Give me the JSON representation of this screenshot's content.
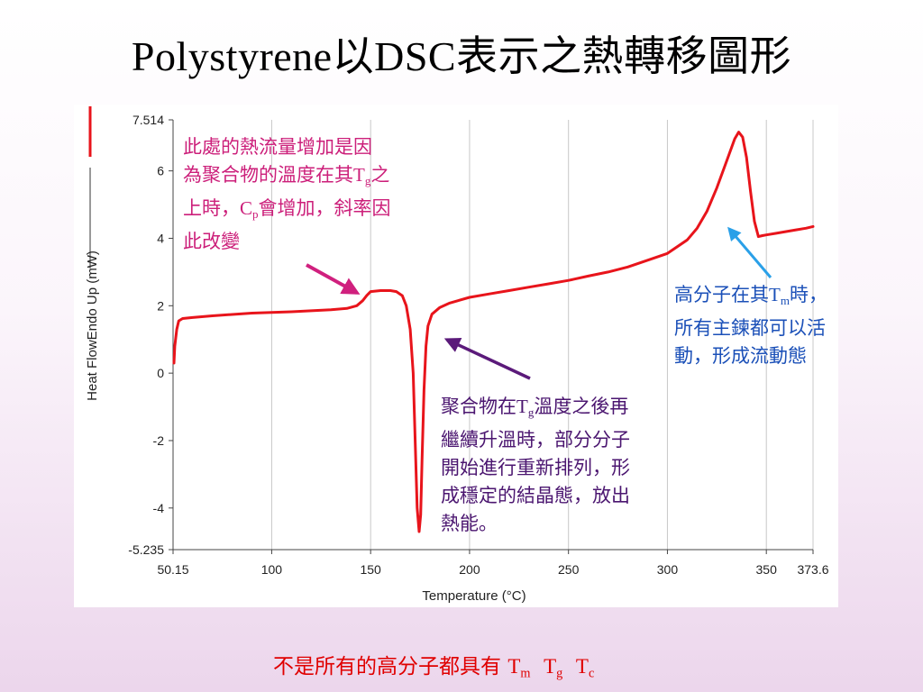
{
  "slide": {
    "title_latin": "Polystyrene",
    "title_rest1": "以",
    "title_latin2": "DSC",
    "title_rest2": "表示之熱轉移圖形"
  },
  "annotations": {
    "pink": {
      "line1": "此處的熱流量增加是因",
      "line2a": "為聚合物的溫度在其",
      "line2_T": "T",
      "line2_sub": "g",
      "line2b": "之",
      "line3a": "上時，",
      "line3_C": "C",
      "line3_sub": "p",
      "line3b": "會增加，斜率因",
      "line4": "此改變"
    },
    "purple": {
      "line1a": "聚合物在",
      "line1_T": "T",
      "line1_sub": "g",
      "line1b": "溫度之後再",
      "line2": "繼續升溫時，部分分子",
      "line3": "開始進行重新排列，形",
      "line4": "成穩定的結晶態，放出",
      "line5": "熱能。"
    },
    "blue": {
      "line1a": "高分子在其",
      "line1_T": "T",
      "line1_sub": "m",
      "line1b": "時，",
      "line2": "所有主鍊都可以活",
      "line3": "動，形成流動態"
    }
  },
  "footer": {
    "text": "不是所有的高分子都具有",
    "t1": "T",
    "t1_sub": "m",
    "t2": "T",
    "t2_sub": "g",
    "t3": "T",
    "t3_sub": "c"
  },
  "colors": {
    "curve": "#e8141b",
    "pink_arrow": "#d0207e",
    "purple_arrow": "#5b1a7a",
    "blue_arrow": "#2aa0e8",
    "grid": "#c8c8c8"
  },
  "chart_data": {
    "type": "line",
    "xlabel": "Temperature (°C)",
    "ylabel": "Heat FlowEndo Up (mW)",
    "xlim": [
      50.15,
      373.6
    ],
    "ylim": [
      -5.235,
      7.514
    ],
    "x_ticks": [
      {
        "value": 50.15,
        "label": "50.15"
      },
      {
        "value": 100,
        "label": "100"
      },
      {
        "value": 150,
        "label": "150"
      },
      {
        "value": 200,
        "label": "200"
      },
      {
        "value": 250,
        "label": "250"
      },
      {
        "value": 300,
        "label": "300"
      },
      {
        "value": 350,
        "label": "350"
      },
      {
        "value": 373.6,
        "label": "373.6"
      }
    ],
    "y_ticks": [
      {
        "value": 7.514,
        "label": "7.514"
      },
      {
        "value": 6,
        "label": "6"
      },
      {
        "value": 4,
        "label": "4"
      },
      {
        "value": 2,
        "label": "2"
      },
      {
        "value": 0,
        "label": "0"
      },
      {
        "value": -2,
        "label": "-2"
      },
      {
        "value": -4,
        "label": "-4"
      },
      {
        "value": -5.235,
        "label": "-5.235"
      }
    ],
    "grid": "vertical",
    "series": [
      {
        "x": [
          50.6,
          51.0,
          52.0,
          53.0,
          55,
          60,
          70,
          80,
          90,
          100,
          110,
          120,
          130,
          138,
          143,
          146,
          148,
          150,
          155,
          160,
          163,
          166,
          168,
          170,
          171.5,
          172.5,
          173.5,
          174.5,
          175.3,
          176.0,
          177.0,
          178.0,
          179,
          181,
          185,
          190,
          200,
          210,
          220,
          230,
          240,
          250,
          260,
          270,
          280,
          290,
          300,
          310,
          315,
          320,
          325,
          330,
          334,
          336,
          338,
          340,
          342,
          344,
          346,
          348,
          350,
          355,
          360,
          365,
          370,
          373.6
        ],
        "y": [
          0.3,
          0.8,
          1.3,
          1.55,
          1.62,
          1.65,
          1.7,
          1.74,
          1.78,
          1.8,
          1.82,
          1.85,
          1.88,
          1.92,
          2.0,
          2.15,
          2.3,
          2.42,
          2.45,
          2.45,
          2.42,
          2.3,
          2.0,
          1.3,
          0.0,
          -2.0,
          -4.0,
          -4.7,
          -4.2,
          -2.5,
          -0.5,
          0.8,
          1.4,
          1.75,
          1.95,
          2.08,
          2.25,
          2.35,
          2.45,
          2.55,
          2.65,
          2.75,
          2.88,
          3.0,
          3.15,
          3.35,
          3.55,
          3.95,
          4.3,
          4.8,
          5.5,
          6.3,
          6.95,
          7.15,
          7.0,
          6.4,
          5.4,
          4.5,
          4.05,
          4.08,
          4.1,
          4.15,
          4.2,
          4.25,
          4.3,
          4.35
        ]
      }
    ]
  }
}
